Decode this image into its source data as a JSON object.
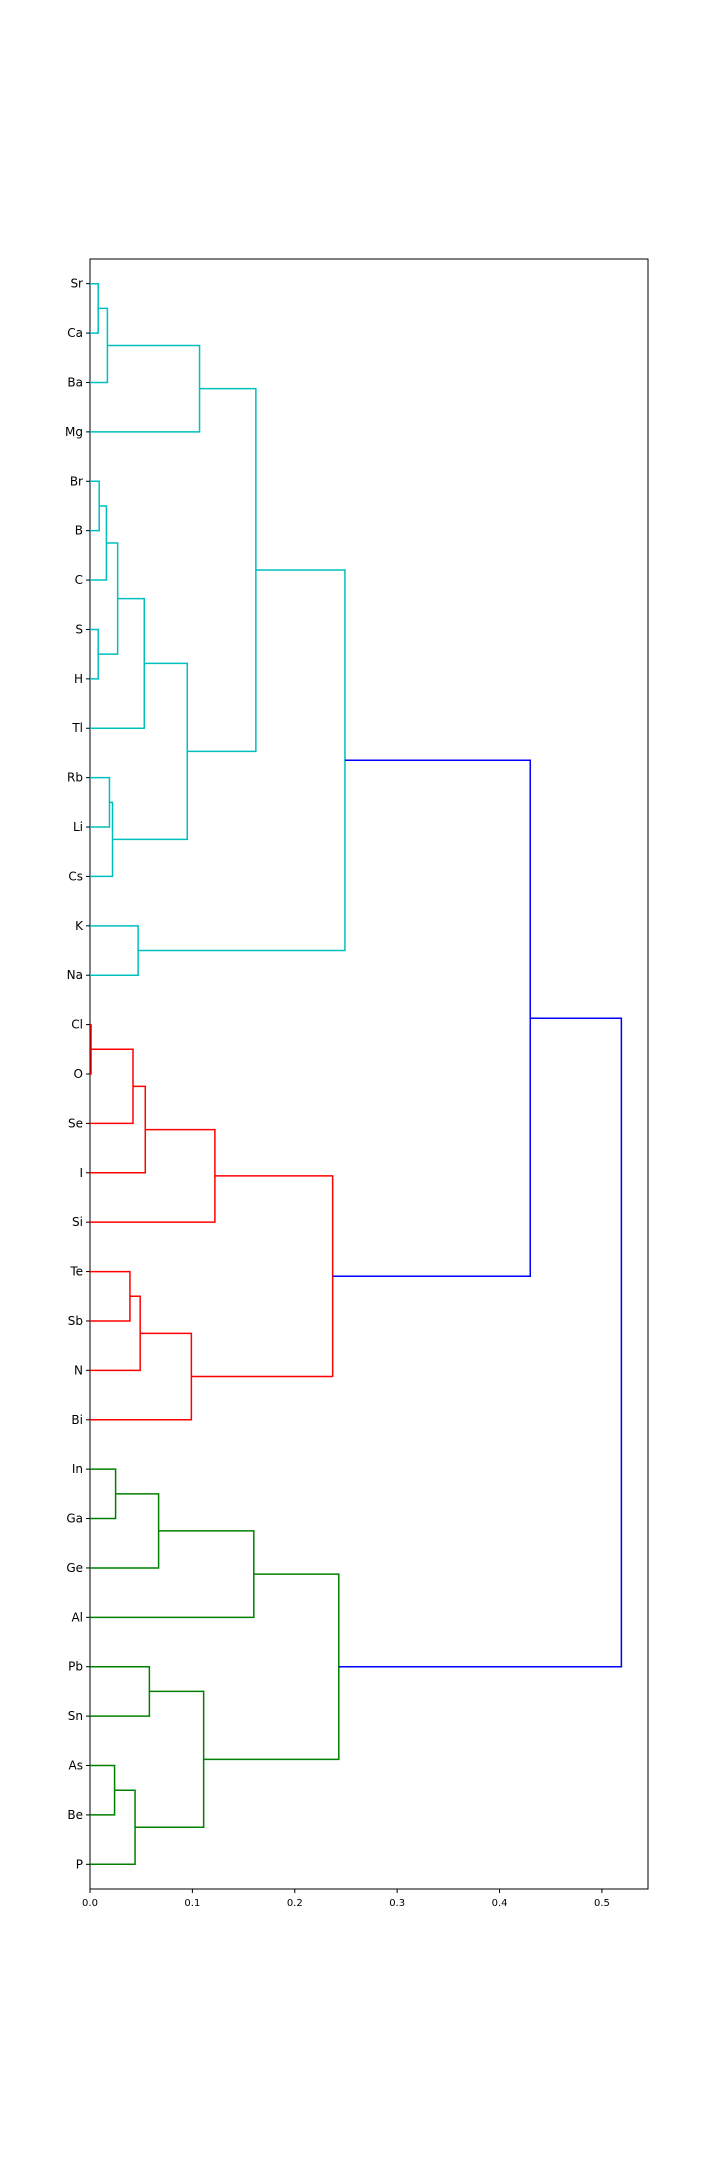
{
  "chart_data": {
    "type": "dendrogram",
    "orientation": "horizontal",
    "title": "",
    "xlabel": "",
    "ylabel": "",
    "xlim": [
      0,
      0.545
    ],
    "xticks": [
      "0.0",
      "0.1",
      "0.2",
      "0.3",
      "0.4",
      "0.5"
    ],
    "xtick_values": [
      0.0,
      0.1,
      0.2,
      0.3,
      0.4,
      0.5
    ],
    "grid": false,
    "leaves": [
      "Sr",
      "Ca",
      "Ba",
      "Mg",
      "Br",
      "B",
      "C",
      "S",
      "H",
      "Tl",
      "Rb",
      "Li",
      "Cs",
      "K",
      "Na",
      "Cl",
      "O",
      "Se",
      "I",
      "Si",
      "Te",
      "Sb",
      "N",
      "Bi",
      "In",
      "Ga",
      "Ge",
      "Al",
      "Pb",
      "Sn",
      "As",
      "Be",
      "P"
    ],
    "colors": {
      "cluster_cyan": "#00bfbf",
      "cluster_red": "#ff0000",
      "cluster_green": "#008000",
      "above_threshold": "#0000ff"
    },
    "merges": [
      {
        "id": "m1",
        "left": "Sr",
        "right": "Ca",
        "height": 0.008,
        "color": "cluster_cyan"
      },
      {
        "id": "m2",
        "left": "m1",
        "right": "Ba",
        "height": 0.017,
        "color": "cluster_cyan"
      },
      {
        "id": "m3",
        "left": "m2",
        "right": "Mg",
        "height": 0.107,
        "color": "cluster_cyan"
      },
      {
        "id": "m4",
        "left": "Br",
        "right": "B",
        "height": 0.009,
        "color": "cluster_cyan"
      },
      {
        "id": "m5",
        "left": "m4",
        "right": "C",
        "height": 0.016,
        "color": "cluster_cyan"
      },
      {
        "id": "m6",
        "left": "S",
        "right": "H",
        "height": 0.008,
        "color": "cluster_cyan"
      },
      {
        "id": "m7",
        "left": "m5",
        "right": "m6",
        "height": 0.027,
        "color": "cluster_cyan"
      },
      {
        "id": "m8",
        "left": "m7",
        "right": "Tl",
        "height": 0.053,
        "color": "cluster_cyan"
      },
      {
        "id": "m9",
        "left": "Rb",
        "right": "Li",
        "height": 0.019,
        "color": "cluster_cyan"
      },
      {
        "id": "m10",
        "left": "m9",
        "right": "Cs",
        "height": 0.022,
        "color": "cluster_cyan"
      },
      {
        "id": "m11",
        "left": "m8",
        "right": "m10",
        "height": 0.095,
        "color": "cluster_cyan"
      },
      {
        "id": "m12",
        "left": "m3",
        "right": "m11",
        "height": 0.162,
        "color": "cluster_cyan"
      },
      {
        "id": "m13",
        "left": "K",
        "right": "Na",
        "height": 0.047,
        "color": "cluster_cyan"
      },
      {
        "id": "m14",
        "left": "m12",
        "right": "m13",
        "height": 0.249,
        "color": "cluster_cyan"
      },
      {
        "id": "m15",
        "left": "Cl",
        "right": "O",
        "height": 0.001,
        "color": "cluster_red"
      },
      {
        "id": "m16",
        "left": "m15",
        "right": "Se",
        "height": 0.042,
        "color": "cluster_red"
      },
      {
        "id": "m17",
        "left": "m16",
        "right": "I",
        "height": 0.054,
        "color": "cluster_red"
      },
      {
        "id": "m18",
        "left": "m17",
        "right": "Si",
        "height": 0.122,
        "color": "cluster_red"
      },
      {
        "id": "m19",
        "left": "Te",
        "right": "Sb",
        "height": 0.039,
        "color": "cluster_red"
      },
      {
        "id": "m20",
        "left": "m19",
        "right": "N",
        "height": 0.049,
        "color": "cluster_red"
      },
      {
        "id": "m21",
        "left": "m20",
        "right": "Bi",
        "height": 0.099,
        "color": "cluster_red"
      },
      {
        "id": "m22",
        "left": "m18",
        "right": "m21",
        "height": 0.237,
        "color": "cluster_red"
      },
      {
        "id": "m23",
        "left": "In",
        "right": "Ga",
        "height": 0.025,
        "color": "cluster_green"
      },
      {
        "id": "m24",
        "left": "m23",
        "right": "Ge",
        "height": 0.067,
        "color": "cluster_green"
      },
      {
        "id": "m25",
        "left": "m24",
        "right": "Al",
        "height": 0.16,
        "color": "cluster_green"
      },
      {
        "id": "m26",
        "left": "Pb",
        "right": "Sn",
        "height": 0.058,
        "color": "cluster_green"
      },
      {
        "id": "m27",
        "left": "As",
        "right": "Be",
        "height": 0.024,
        "color": "cluster_green"
      },
      {
        "id": "m28",
        "left": "m27",
        "right": "P",
        "height": 0.044,
        "color": "cluster_green"
      },
      {
        "id": "m29",
        "left": "m26",
        "right": "m28",
        "height": 0.111,
        "color": "cluster_green"
      },
      {
        "id": "m30",
        "left": "m25",
        "right": "m29",
        "height": 0.243,
        "color": "cluster_green"
      },
      {
        "id": "m31",
        "left": "m14",
        "right": "m22",
        "height": 0.43,
        "color": "above_threshold"
      },
      {
        "id": "m32",
        "left": "m31",
        "right": "m30",
        "height": 0.519,
        "color": "above_threshold"
      }
    ]
  }
}
